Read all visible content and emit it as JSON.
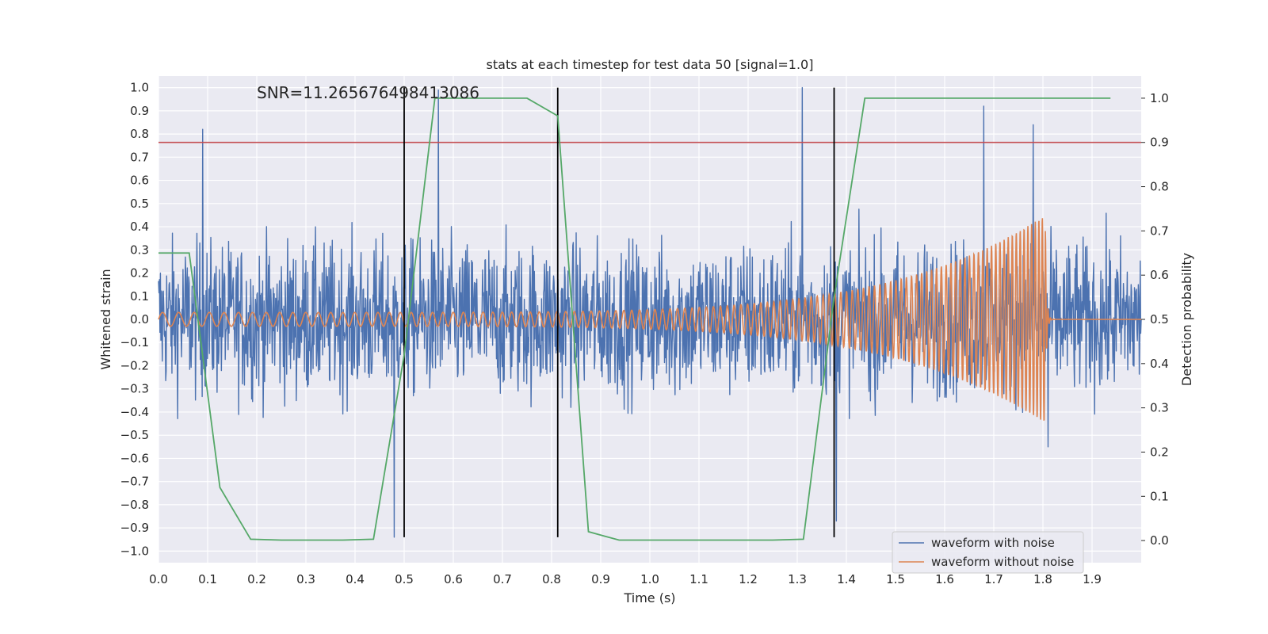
{
  "chart_data": {
    "type": "line",
    "title": "stats at each timestep for test data 50 [signal=1.0]",
    "xlabel": "Time (s)",
    "ylabel": "Whitened strain",
    "y2label": "Detection probability",
    "annotation": "SNR=11.265676498413086",
    "xlim": [
      0.0,
      2.0
    ],
    "ylim": [
      -1.05,
      1.05
    ],
    "y2lim": [
      -0.05,
      1.05
    ],
    "xticks": [
      "0.0",
      "0.1",
      "0.2",
      "0.3",
      "0.4",
      "0.5",
      "0.6",
      "0.7",
      "0.8",
      "0.9",
      "1.0",
      "1.1",
      "1.2",
      "1.3",
      "1.4",
      "1.5",
      "1.6",
      "1.7",
      "1.8",
      "1.9"
    ],
    "yticks": [
      "−1.0",
      "−0.9",
      "−0.8",
      "−0.7",
      "−0.6",
      "−0.5",
      "−0.4",
      "−0.3",
      "−0.2",
      "−0.1",
      "0.0",
      "0.1",
      "0.2",
      "0.3",
      "0.4",
      "0.5",
      "0.6",
      "0.7",
      "0.8",
      "0.9",
      "1.0"
    ],
    "y2ticks": [
      "0.0",
      "0.1",
      "0.2",
      "0.3",
      "0.4",
      "0.5",
      "0.6",
      "0.7",
      "0.8",
      "0.9",
      "1.0"
    ],
    "grid": true,
    "legend_position": "bottom-right",
    "colors": {
      "background": "#eaeaf2",
      "noisy": "#4c72b0",
      "clean": "#dd8452",
      "probability": "#55a868",
      "threshold": "#c44e52",
      "markers": "#000000"
    },
    "series": [
      {
        "name": "waveform with noise",
        "axis": "left",
        "note_peaks": [
          {
            "x": 0.09,
            "y": 0.82
          },
          {
            "x": 0.48,
            "y": -0.94
          },
          {
            "x": 0.57,
            "y": 0.99
          },
          {
            "x": 1.31,
            "y": 1.0
          },
          {
            "x": 1.38,
            "y": -0.87
          },
          {
            "x": 1.68,
            "y": 0.92
          },
          {
            "x": 1.78,
            "y": 0.84
          },
          {
            "x": 1.81,
            "y": -0.55
          }
        ],
        "x_range": [
          0.0,
          2.0
        ],
        "amplitude": 0.3
      },
      {
        "name": "waveform without noise",
        "axis": "left",
        "chirp": {
          "t_start": 0.0,
          "t_merge": 1.805,
          "amp_start": 0.03,
          "amp_peak": 0.45,
          "f_start": 30,
          "f_end": 160
        }
      },
      {
        "axis": "right",
        "x": [
          0.0,
          0.0625,
          0.125,
          0.1875,
          0.25,
          0.3125,
          0.375,
          0.4375,
          0.5,
          0.5625,
          0.625,
          0.6875,
          0.75,
          0.8125,
          0.875,
          0.9375,
          1.0,
          1.0625,
          1.125,
          1.1875,
          1.25,
          1.3125,
          1.375,
          1.4375,
          1.5,
          1.5625,
          1.625,
          1.6875,
          1.75,
          1.8125,
          1.875,
          1.9375
        ],
        "values": [
          0.65,
          0.65,
          0.12,
          0.003,
          0.001,
          0.001,
          0.001,
          0.003,
          0.42,
          1.0,
          1.0,
          1.0,
          1.0,
          0.96,
          0.02,
          0.001,
          0.001,
          0.001,
          0.001,
          0.001,
          0.001,
          0.003,
          0.55,
          1.0,
          1.0,
          1.0,
          1.0,
          1.0,
          1.0,
          1.0,
          1.0,
          1.0
        ]
      }
    ],
    "hlines": [
      {
        "axis": "right",
        "y": 0.9
      }
    ],
    "vlines": [
      0.5,
      0.8125,
      1.375
    ]
  }
}
